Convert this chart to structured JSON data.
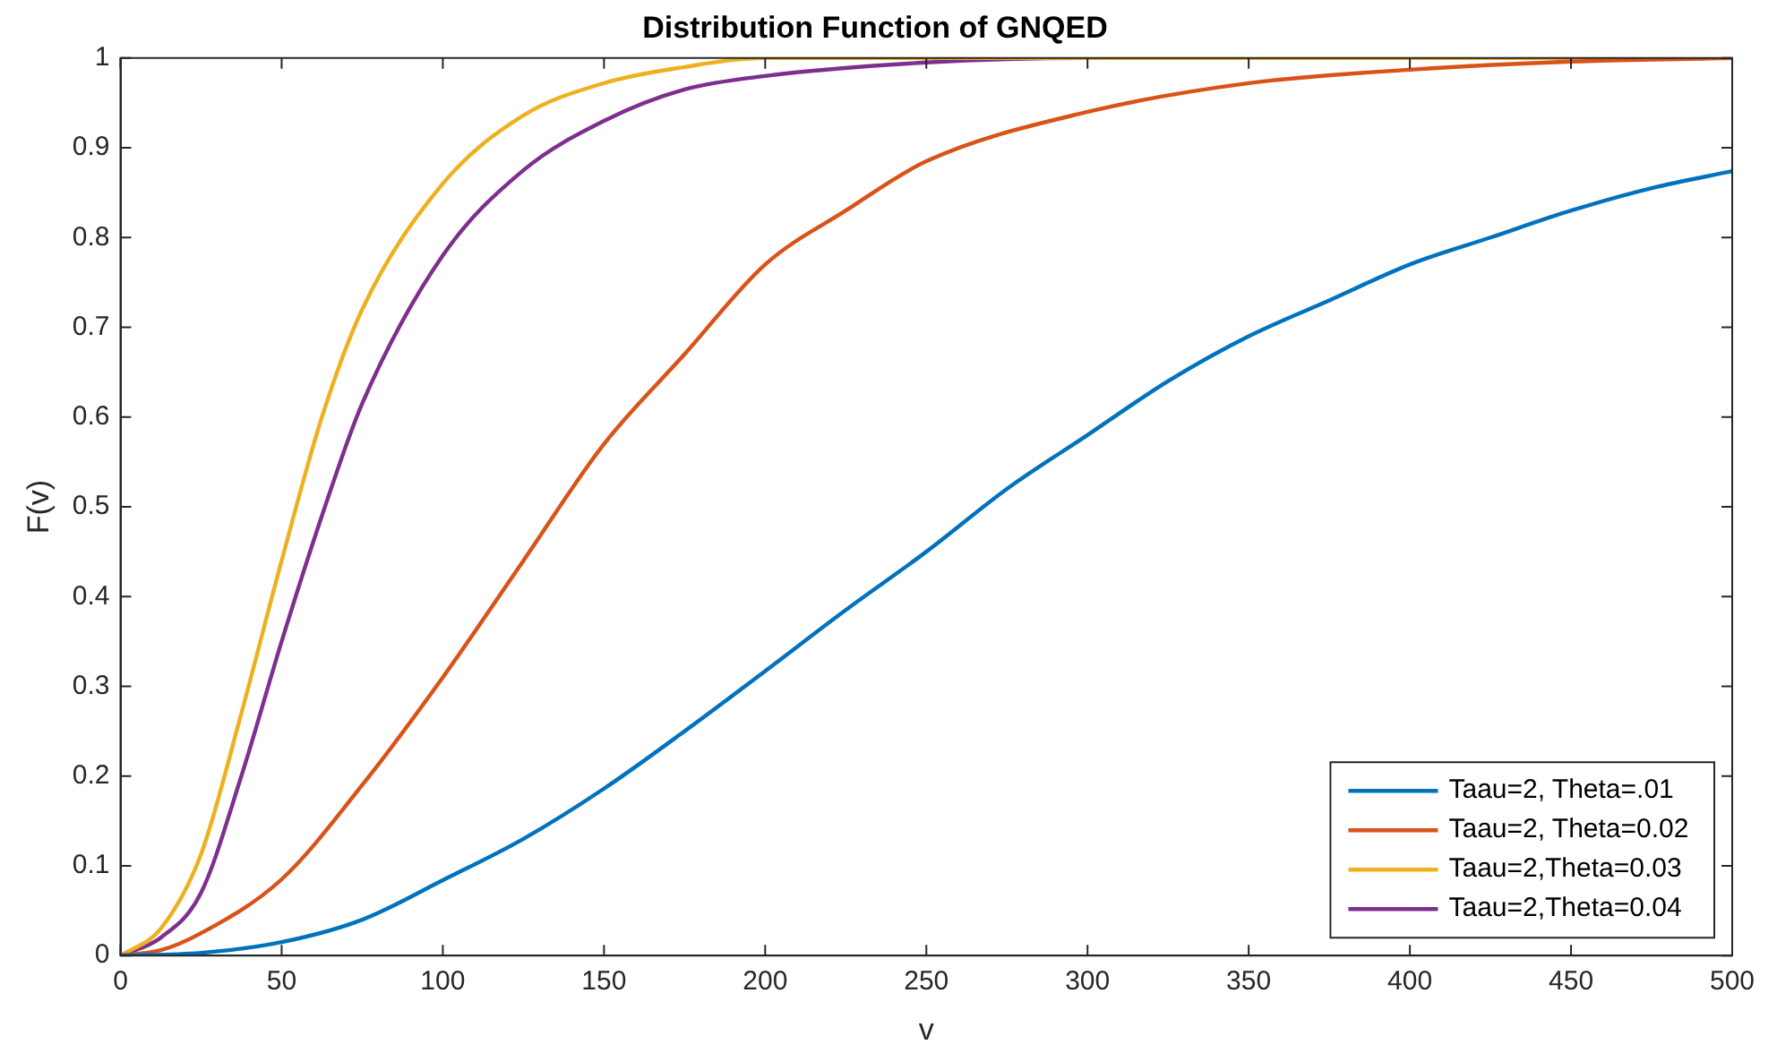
{
  "chart_data": {
    "type": "line",
    "title": "Distribution Function of GNQED",
    "xlabel": "v",
    "ylabel": "F(v)",
    "xlim": [
      0,
      500
    ],
    "xticks": [
      0,
      50,
      100,
      150,
      200,
      250,
      300,
      350,
      400,
      450,
      500
    ],
    "ylim": [
      0,
      1
    ],
    "yticks": [
      0,
      0.1,
      0.2,
      0.3,
      0.4,
      0.5,
      0.6,
      0.7,
      0.8,
      0.9,
      1
    ],
    "grid": false,
    "legend": "bottom right",
    "marker": "none",
    "line_style": "solid",
    "series": [
      {
        "name": "Taau=2, Theta=.01",
        "color": "#0072bd",
        "x": [
          0,
          25,
          50,
          75,
          100,
          125,
          150,
          175,
          200,
          225,
          250,
          275,
          300,
          325,
          350,
          375,
          400,
          425,
          450,
          475,
          500
        ],
        "values": [
          0,
          0.003,
          0.015,
          0.04,
          0.084,
          0.13,
          0.186,
          0.25,
          0.317,
          0.385,
          0.45,
          0.52,
          0.58,
          0.64,
          0.69,
          0.73,
          0.77,
          0.8,
          0.83,
          0.855,
          0.874
        ]
      },
      {
        "name": "Taau=2, Theta=0.02",
        "color": "#d95319",
        "x": [
          0,
          12.5,
          25,
          50,
          75,
          100,
          125,
          150,
          175,
          200,
          225,
          250,
          300,
          350,
          400,
          450,
          500
        ],
        "values": [
          0,
          0.006,
          0.025,
          0.085,
          0.19,
          0.31,
          0.44,
          0.57,
          0.67,
          0.77,
          0.83,
          0.885,
          0.94,
          0.972,
          0.987,
          0.996,
          1
        ]
      },
      {
        "name": "Taau=2,Theta=0.03",
        "color": "#edb120",
        "x": [
          0,
          12.5,
          25,
          37.5,
          50,
          62.5,
          75,
          100,
          125,
          150,
          175,
          200,
          250,
          300,
          400,
          500
        ],
        "values": [
          0,
          0.03,
          0.113,
          0.27,
          0.44,
          0.6,
          0.72,
          0.86,
          0.936,
          0.972,
          0.99,
          1,
          1,
          1,
          1,
          1
        ]
      },
      {
        "name": "Taau=2,Theta=0.04",
        "color": "#7e2f8e",
        "x": [
          0,
          12.5,
          25,
          37.5,
          50,
          62.5,
          75,
          100,
          125,
          150,
          175,
          200,
          250,
          300,
          400,
          500
        ],
        "values": [
          0,
          0.02,
          0.07,
          0.2,
          0.35,
          0.49,
          0.615,
          0.78,
          0.875,
          0.93,
          0.965,
          0.98,
          0.995,
          1,
          1,
          1
        ]
      }
    ]
  }
}
